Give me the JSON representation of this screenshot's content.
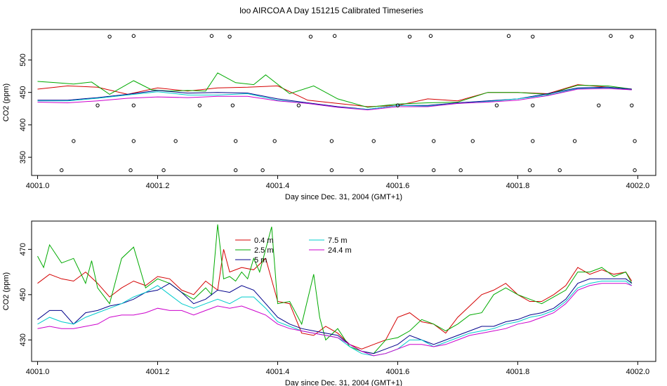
{
  "title": "loo AIRCOA A  Day 151215  Calibrated Timeseries",
  "chart_data": [
    {
      "type": "line",
      "xlabel": "Day since Dec. 31, 2004 (GMT+1)",
      "ylabel": "CO2 (ppm)",
      "xlim": [
        4000.99,
        4002.03
      ],
      "ylim": [
        322,
        547
      ],
      "xticks": [
        4001.0,
        4001.2,
        4001.4,
        4001.6,
        4001.8,
        4002.0
      ],
      "xtick_labels": [
        "4001.0",
        "4001.2",
        "4001.4",
        "4001.6",
        "4001.8",
        "4002.0"
      ],
      "yticks": [
        350,
        400,
        450,
        500
      ],
      "ytick_labels": [
        "350",
        "400",
        "450",
        "500"
      ],
      "grid": false,
      "series": [
        {
          "color": "#d40000",
          "x": [
            4001.0,
            4001.05,
            4001.1,
            4001.15,
            4001.2,
            4001.25,
            4001.3,
            4001.35,
            4001.4,
            4001.45,
            4001.5,
            4001.55,
            4001.6,
            4001.65,
            4001.7,
            4001.75,
            4001.8,
            4001.85,
            4001.9,
            4001.95,
            4001.99
          ],
          "y": [
            455,
            460,
            458,
            447,
            457,
            452,
            457,
            458,
            460,
            438,
            433,
            428,
            430,
            440,
            437,
            450,
            450,
            448,
            462,
            458,
            455
          ]
        },
        {
          "color": "#00aa00",
          "x": [
            4001.0,
            4001.03,
            4001.06,
            4001.09,
            4001.12,
            4001.16,
            4001.19,
            4001.22,
            4001.25,
            4001.28,
            4001.3,
            4001.33,
            4001.36,
            4001.38,
            4001.42,
            4001.46,
            4001.5,
            4001.55,
            4001.6,
            4001.65,
            4001.7,
            4001.75,
            4001.8,
            4001.85,
            4001.9,
            4001.95,
            4001.99
          ],
          "y": [
            467,
            465,
            463,
            466,
            447,
            468,
            454,
            452,
            453,
            452,
            480,
            465,
            462,
            477,
            448,
            460,
            440,
            427,
            432,
            434,
            435,
            450,
            450,
            447,
            461,
            460,
            455
          ]
        },
        {
          "color": "#00008b",
          "x": [
            4001.0,
            4001.05,
            4001.1,
            4001.15,
            4001.2,
            4001.25,
            4001.3,
            4001.35,
            4001.4,
            4001.45,
            4001.5,
            4001.55,
            4001.6,
            4001.65,
            4001.7,
            4001.75,
            4001.8,
            4001.85,
            4001.9,
            4001.95,
            4001.99
          ],
          "y": [
            438,
            438,
            442,
            447,
            453,
            449,
            450,
            449,
            440,
            434,
            428,
            424,
            430,
            430,
            434,
            437,
            440,
            448,
            457,
            458,
            455
          ]
        },
        {
          "color": "#00cccc",
          "x": [
            4001.0,
            4001.05,
            4001.1,
            4001.15,
            4001.2,
            4001.25,
            4001.3,
            4001.35,
            4001.4,
            4001.45,
            4001.5,
            4001.55,
            4001.6,
            4001.65,
            4001.7,
            4001.75,
            4001.8,
            4001.85,
            4001.9,
            4001.95,
            4001.99
          ],
          "y": [
            437,
            437,
            441,
            446,
            451,
            446,
            446,
            448,
            438,
            433,
            427,
            424,
            430,
            429,
            433,
            436,
            440,
            446,
            456,
            457,
            454
          ]
        },
        {
          "color": "#cc00cc",
          "x": [
            4001.0,
            4001.05,
            4001.1,
            4001.15,
            4001.2,
            4001.25,
            4001.3,
            4001.35,
            4001.4,
            4001.45,
            4001.5,
            4001.55,
            4001.6,
            4001.65,
            4001.7,
            4001.75,
            4001.8,
            4001.85,
            4001.9,
            4001.95,
            4001.99
          ],
          "y": [
            435,
            434,
            437,
            441,
            443,
            442,
            444,
            444,
            437,
            433,
            427,
            423,
            428,
            428,
            433,
            435,
            438,
            445,
            455,
            456,
            454
          ]
        }
      ],
      "points": {
        "marker": "open-circle",
        "x": [
          4001.04,
          4001.06,
          4001.1,
          4001.12,
          4001.155,
          4001.16,
          4001.16,
          4001.16,
          4001.21,
          4001.23,
          4001.27,
          4001.29,
          4001.32,
          4001.325,
          4001.33,
          4001.33,
          4001.375,
          4001.395,
          4001.435,
          4001.455,
          4001.49,
          4001.49,
          4001.495,
          4001.54,
          4001.56,
          4001.6,
          4001.62,
          4001.655,
          4001.66,
          4001.66,
          4001.705,
          4001.725,
          4001.765,
          4001.785,
          4001.82,
          4001.825,
          4001.825,
          4001.825,
          4001.87,
          4001.895,
          4001.935,
          4001.955,
          4001.99,
          4001.99,
          4001.995,
          4001.995
        ],
        "y": [
          330,
          375,
          430,
          536,
          330,
          375,
          430,
          537,
          330,
          375,
          430,
          537,
          536,
          430,
          375,
          330,
          330,
          375,
          430,
          536,
          375,
          330,
          537,
          330,
          375,
          430,
          536,
          537,
          375,
          330,
          330,
          375,
          430,
          537,
          330,
          375,
          430,
          536,
          330,
          375,
          430,
          537,
          536,
          430,
          375,
          330
        ]
      }
    },
    {
      "type": "line",
      "xlabel": "Day since Dec. 31, 2004 (GMT+1)",
      "ylabel": "CO2 (ppm)",
      "xlim": [
        4000.99,
        4002.03
      ],
      "ylim": [
        420.5,
        482.5
      ],
      "xticks": [
        4001.0,
        4001.2,
        4001.4,
        4001.6,
        4001.8,
        4002.0
      ],
      "xtick_labels": [
        "4001.0",
        "4001.2",
        "4001.4",
        "4001.6",
        "4001.8",
        "4002.0"
      ],
      "yticks": [
        430,
        450,
        470
      ],
      "ytick_labels": [
        "430",
        "450",
        "470"
      ],
      "grid": false,
      "legend": {
        "placement": "top-left"
      },
      "series": [
        {
          "name": "0.4 m",
          "color": "#d40000",
          "x": [
            4001.0,
            4001.02,
            4001.04,
            4001.06,
            4001.08,
            4001.1,
            4001.12,
            4001.14,
            4001.16,
            4001.18,
            4001.2,
            4001.22,
            4001.24,
            4001.26,
            4001.28,
            4001.3,
            4001.31,
            4001.32,
            4001.34,
            4001.36,
            4001.38,
            4001.4,
            4001.42,
            4001.44,
            4001.46,
            4001.48,
            4001.5,
            4001.52,
            4001.54,
            4001.56,
            4001.58,
            4001.6,
            4001.62,
            4001.64,
            4001.66,
            4001.68,
            4001.7,
            4001.72,
            4001.74,
            4001.76,
            4001.78,
            4001.8,
            4001.82,
            4001.84,
            4001.86,
            4001.88,
            4001.9,
            4001.92,
            4001.94,
            4001.96,
            4001.98,
            4001.99
          ],
          "y": [
            455,
            459,
            457,
            456,
            460,
            455,
            449,
            453,
            456,
            454,
            458,
            457,
            452,
            450,
            456,
            452,
            470,
            460,
            462,
            461,
            466,
            447,
            446,
            433,
            432,
            436,
            433,
            428,
            426,
            428,
            430,
            440,
            442,
            438,
            437,
            433,
            440,
            445,
            450,
            452,
            455,
            450,
            447,
            447,
            450,
            454,
            462,
            459,
            461,
            459,
            460,
            456
          ]
        },
        {
          "name": "2.5 m",
          "color": "#00aa00",
          "x": [
            4001.0,
            4001.01,
            4001.02,
            4001.04,
            4001.06,
            4001.08,
            4001.09,
            4001.1,
            4001.12,
            4001.14,
            4001.16,
            4001.18,
            4001.2,
            4001.22,
            4001.24,
            4001.26,
            4001.28,
            4001.29,
            4001.3,
            4001.31,
            4001.32,
            4001.33,
            4001.34,
            4001.35,
            4001.36,
            4001.37,
            4001.38,
            4001.39,
            4001.4,
            4001.42,
            4001.44,
            4001.46,
            4001.47,
            4001.48,
            4001.5,
            4001.52,
            4001.54,
            4001.56,
            4001.58,
            4001.6,
            4001.62,
            4001.64,
            4001.66,
            4001.68,
            4001.7,
            4001.72,
            4001.74,
            4001.76,
            4001.78,
            4001.8,
            4001.82,
            4001.84,
            4001.86,
            4001.88,
            4001.9,
            4001.92,
            4001.94,
            4001.96,
            4001.98,
            4001.99
          ],
          "y": [
            467,
            462,
            472,
            464,
            466,
            455,
            465,
            453,
            446,
            466,
            471,
            453,
            457,
            455,
            451,
            448,
            453,
            450,
            481,
            457,
            458,
            456,
            460,
            457,
            466,
            460,
            470,
            480,
            446,
            447,
            437,
            459,
            440,
            430,
            435,
            427,
            425,
            424,
            430,
            431,
            434,
            439,
            437,
            434,
            437,
            441,
            442,
            450,
            453,
            450,
            448,
            446,
            449,
            452,
            460,
            460,
            462,
            458,
            460,
            455
          ]
        },
        {
          "name": "5 m",
          "color": "#00008b",
          "x": [
            4001.0,
            4001.02,
            4001.04,
            4001.06,
            4001.08,
            4001.1,
            4001.12,
            4001.14,
            4001.16,
            4001.18,
            4001.2,
            4001.22,
            4001.24,
            4001.26,
            4001.28,
            4001.3,
            4001.32,
            4001.34,
            4001.36,
            4001.38,
            4001.4,
            4001.42,
            4001.44,
            4001.46,
            4001.48,
            4001.5,
            4001.52,
            4001.54,
            4001.56,
            4001.58,
            4001.6,
            4001.62,
            4001.64,
            4001.66,
            4001.68,
            4001.7,
            4001.72,
            4001.74,
            4001.76,
            4001.78,
            4001.8,
            4001.82,
            4001.84,
            4001.86,
            4001.88,
            4001.9,
            4001.92,
            4001.94,
            4001.96,
            4001.98,
            4001.99
          ],
          "y": [
            439,
            443,
            443,
            437,
            442,
            443,
            445,
            446,
            448,
            451,
            452,
            455,
            451,
            446,
            448,
            452,
            451,
            454,
            452,
            446,
            440,
            437,
            435,
            434,
            433,
            432,
            428,
            425,
            424,
            426,
            428,
            432,
            430,
            428,
            430,
            432,
            434,
            436,
            436,
            438,
            439,
            441,
            442,
            444,
            448,
            455,
            457,
            457,
            457,
            457,
            455
          ]
        },
        {
          "name": "7.5 m",
          "color": "#00cccc",
          "x": [
            4001.0,
            4001.02,
            4001.04,
            4001.06,
            4001.08,
            4001.1,
            4001.12,
            4001.14,
            4001.16,
            4001.18,
            4001.2,
            4001.22,
            4001.24,
            4001.26,
            4001.28,
            4001.3,
            4001.32,
            4001.34,
            4001.36,
            4001.38,
            4001.4,
            4001.42,
            4001.44,
            4001.46,
            4001.48,
            4001.5,
            4001.52,
            4001.54,
            4001.56,
            4001.58,
            4001.6,
            4001.62,
            4001.64,
            4001.66,
            4001.68,
            4001.7,
            4001.72,
            4001.74,
            4001.76,
            4001.78,
            4001.8,
            4001.82,
            4001.84,
            4001.86,
            4001.88,
            4001.9,
            4001.92,
            4001.94,
            4001.96,
            4001.98,
            4001.99
          ],
          "y": [
            437,
            440,
            438,
            437,
            440,
            442,
            444,
            446,
            449,
            451,
            454,
            450,
            446,
            444,
            446,
            448,
            446,
            449,
            449,
            444,
            438,
            436,
            434,
            433,
            432,
            431,
            427,
            424,
            423,
            424,
            426,
            430,
            430,
            427,
            429,
            431,
            433,
            434,
            435,
            437,
            438,
            440,
            441,
            443,
            447,
            453,
            455,
            456,
            456,
            456,
            454
          ]
        },
        {
          "name": "24.4 m",
          "color": "#cc00cc",
          "x": [
            4001.0,
            4001.02,
            4001.04,
            4001.06,
            4001.08,
            4001.1,
            4001.12,
            4001.14,
            4001.16,
            4001.18,
            4001.2,
            4001.22,
            4001.24,
            4001.26,
            4001.28,
            4001.3,
            4001.32,
            4001.34,
            4001.36,
            4001.38,
            4001.4,
            4001.42,
            4001.44,
            4001.46,
            4001.48,
            4001.5,
            4001.52,
            4001.54,
            4001.56,
            4001.58,
            4001.6,
            4001.62,
            4001.64,
            4001.66,
            4001.68,
            4001.7,
            4001.72,
            4001.74,
            4001.76,
            4001.78,
            4001.8,
            4001.82,
            4001.84,
            4001.86,
            4001.88,
            4001.9,
            4001.92,
            4001.94,
            4001.96,
            4001.98,
            4001.99
          ],
          "y": [
            435,
            436,
            435,
            435,
            436,
            437,
            440,
            441,
            441,
            442,
            444,
            443,
            443,
            441,
            443,
            445,
            444,
            445,
            443,
            441,
            437,
            435,
            434,
            433,
            432,
            431,
            428,
            425,
            423,
            424,
            426,
            428,
            428,
            427,
            428,
            430,
            432,
            433,
            434,
            435,
            437,
            438,
            440,
            442,
            446,
            452,
            454,
            455,
            455,
            455,
            454
          ]
        }
      ]
    }
  ]
}
